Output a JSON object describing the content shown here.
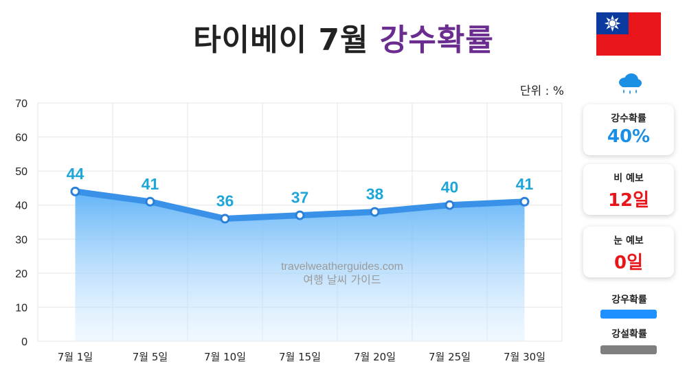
{
  "header": {
    "title_main": "타이베이 7월",
    "title_accent": "강수확률"
  },
  "unit_label": "단위 : %",
  "icons": {
    "flag": "taiwan-flag-icon",
    "rain": "rain-cloud-icon"
  },
  "cards": [
    {
      "label": "강수확률",
      "value": "40%",
      "color": "#1a8fe3"
    },
    {
      "label": "비 예보",
      "value": "12일",
      "color": "#e8161b"
    },
    {
      "label": "눈 예보",
      "value": "0일",
      "color": "#e8161b"
    }
  ],
  "legend": [
    {
      "label": "강우확률",
      "color": "#1e90ff"
    },
    {
      "label": "강설확률",
      "color": "#7f7f7f"
    }
  ],
  "watermark": {
    "line1": "travelweatherguides.com",
    "line2": "여행 날씨 가이드"
  },
  "chart_data": {
    "type": "area",
    "title": "타이베이 7월 강수확률",
    "xlabel": "",
    "ylabel": "단위 : %",
    "categories": [
      "7월 1일",
      "7월 5일",
      "7월 10일",
      "7월 15일",
      "7월 20일",
      "7월 25일",
      "7월 30일"
    ],
    "series": [
      {
        "name": "강우확률",
        "values": [
          44,
          41,
          36,
          37,
          38,
          40,
          41
        ],
        "color": "#1e90ff"
      }
    ],
    "ylim": [
      0,
      70
    ],
    "yticks": [
      0,
      10,
      20,
      30,
      40,
      50,
      60,
      70
    ],
    "grid": true,
    "data_label_color": "#1fa6d9",
    "line_color": "#3a92e8"
  }
}
